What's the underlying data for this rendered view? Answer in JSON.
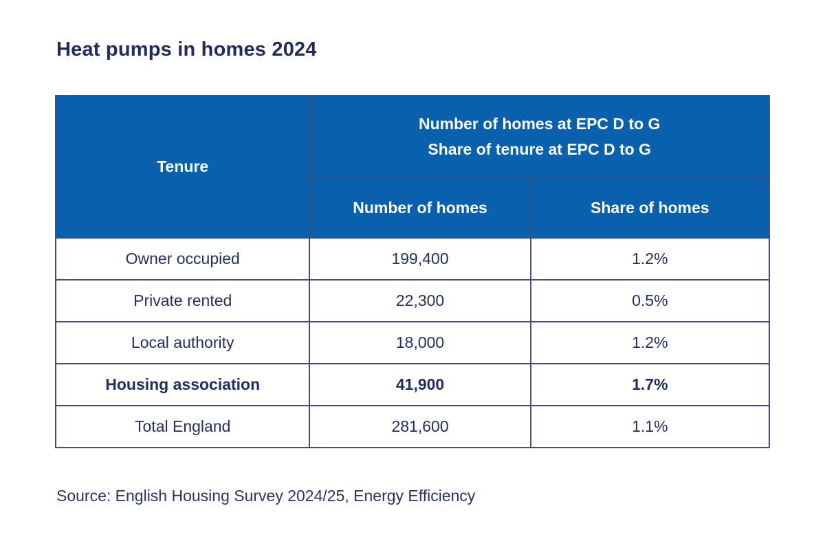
{
  "colors": {
    "header_background": "#0960ad",
    "header_text": "#ffffff",
    "border": "#424f7c",
    "body_text": "#222f63",
    "title_text": "#1f2a5e",
    "page_background": "#ffffff"
  },
  "chart_data": {
    "type": "table",
    "title": "Heat pumps in homes 2024",
    "source": "Source: English Housing Survey 2024/25, Energy Efficiency",
    "header": {
      "tenure_label": "Tenure",
      "group_line1": "Number of homes at EPC D to G",
      "group_line2": "Share of tenure at EPC D to G",
      "subcol_number": "Number of homes",
      "subcol_share": "Share of homes"
    },
    "rows": [
      {
        "tenure": "Owner occupied",
        "number": "199,400",
        "share": "1.2%",
        "emphasized": false
      },
      {
        "tenure": "Private rented",
        "number": "22,300",
        "share": "0.5%",
        "emphasized": false
      },
      {
        "tenure": "Local authority",
        "number": "18,000",
        "share": "1.2%",
        "emphasized": false
      },
      {
        "tenure": "Housing association",
        "number": "41,900",
        "share": "1.7%",
        "emphasized": true
      },
      {
        "tenure": "Total England",
        "number": "281,600",
        "share": "1.1%",
        "emphasized": false
      }
    ]
  }
}
